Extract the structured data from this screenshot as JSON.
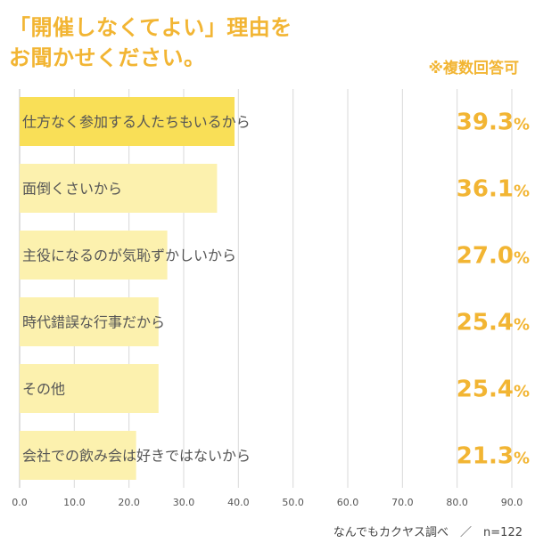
{
  "header": {
    "title_line1": "「開催しなくてよい」理由を",
    "title_line2": "お聞かせください。",
    "note": "※複数回答可"
  },
  "footer": {
    "source": "なんでもカクヤス調べ　／　n=122"
  },
  "colors": {
    "accent": "#f2b533",
    "highlight_bar": "#f9df57",
    "bar": "#fcf1ae",
    "grid": "#d9d9d9"
  },
  "chart_data": {
    "type": "bar",
    "orientation": "horizontal",
    "title": "「開催しなくてよい」理由をお聞かせください。",
    "categories": [
      "仕方なく参加する人たちもいるから",
      "面倒くさいから",
      "主役になるのが気恥ずかしいから",
      "時代錯誤な行事だから",
      "その他",
      "会社での飲み会は好きではないから"
    ],
    "values": [
      39.3,
      36.1,
      27.0,
      25.4,
      25.4,
      21.3
    ],
    "value_labels": [
      "39.3",
      "36.1",
      "27.0",
      "25.4",
      "25.4",
      "21.3"
    ],
    "value_unit": "%",
    "xlim": [
      0,
      90
    ],
    "xticks": [
      0,
      10,
      20,
      30,
      40,
      50,
      60,
      70,
      80,
      90
    ],
    "xtick_labels": [
      "0.0",
      "10.0",
      "20.0",
      "30.0",
      "40.0",
      "50.0",
      "60.0",
      "70.0",
      "80.0",
      "90.0"
    ],
    "grid": true,
    "highlight_index": 0
  }
}
